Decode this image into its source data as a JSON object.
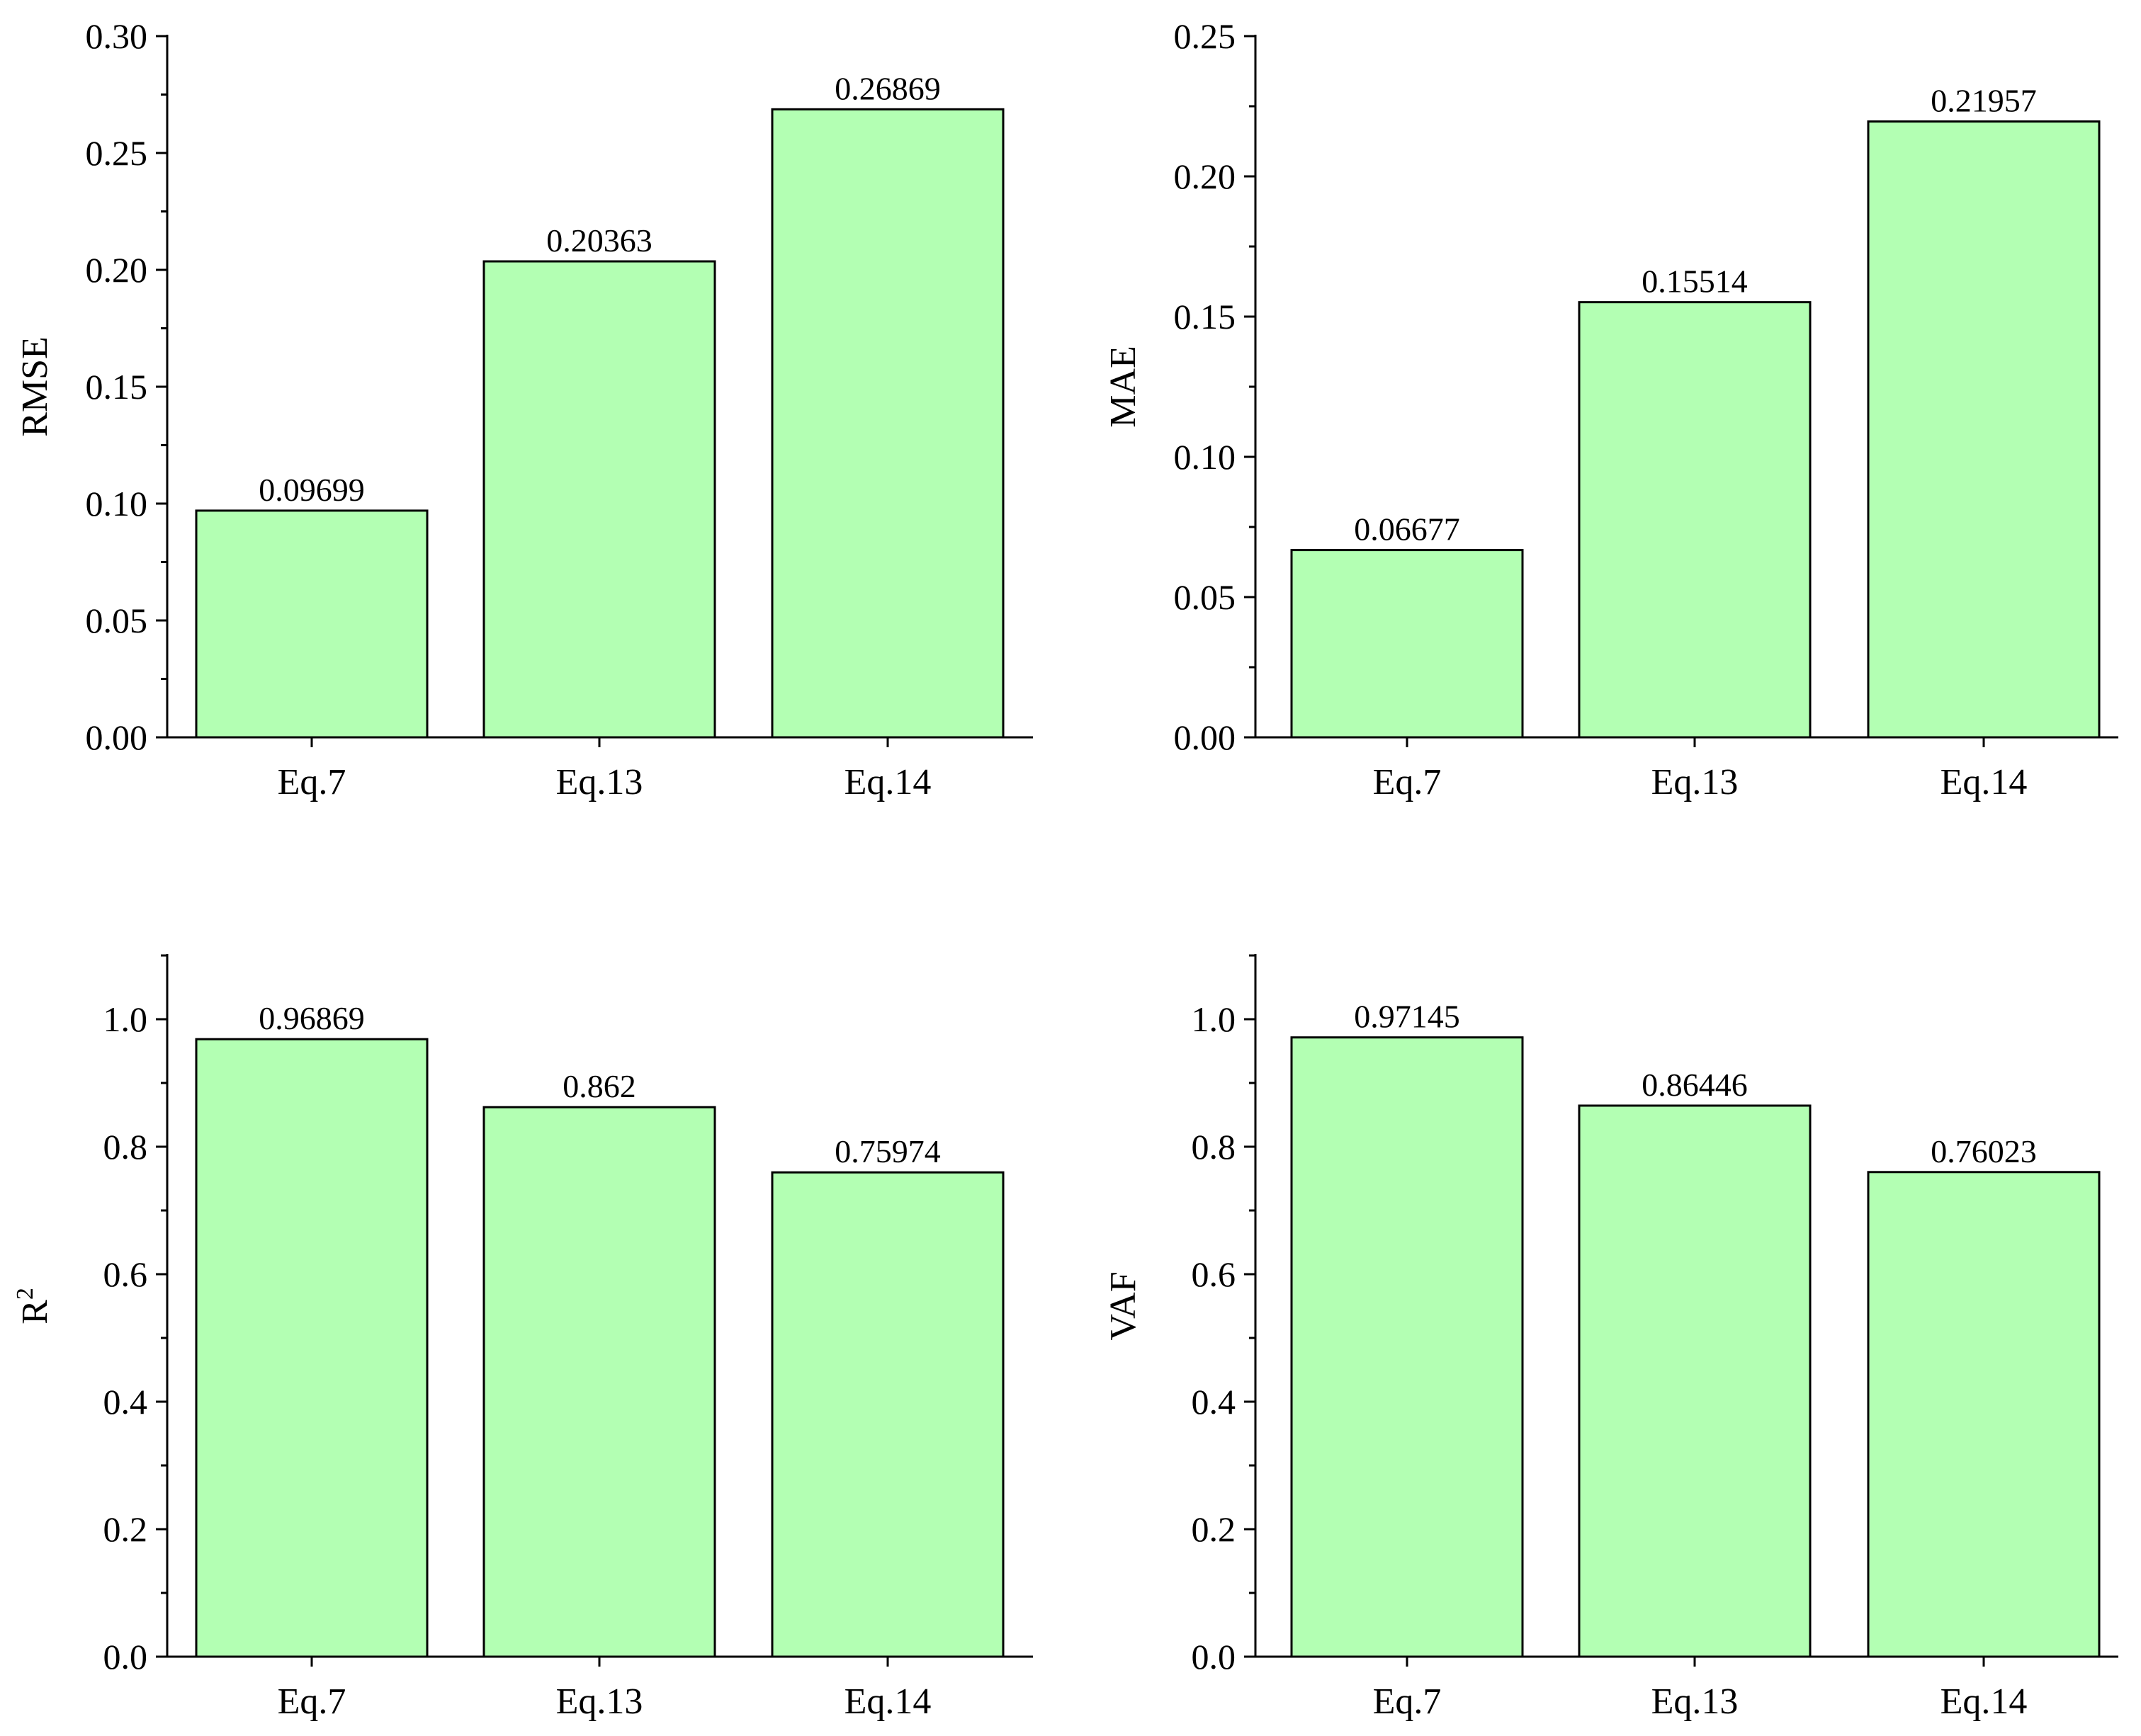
{
  "chart_data": [
    {
      "type": "bar",
      "categories": [
        "Eq.7",
        "Eq.13",
        "Eq.14"
      ],
      "values": [
        0.09699,
        0.20363,
        0.26869
      ],
      "value_labels": [
        "0.09699",
        "0.20363",
        "0.26869"
      ],
      "title": "",
      "xlabel": "",
      "ylabel": "RMSE",
      "ylim": [
        0,
        0.3
      ],
      "yticks": [
        0.0,
        0.05,
        0.1,
        0.15,
        0.2,
        0.25,
        0.3
      ],
      "ytick_labels": [
        "0.00",
        "0.05",
        "0.10",
        "0.15",
        "0.20",
        "0.25",
        "0.30"
      ],
      "minor_ticks": true,
      "grid": false,
      "bar_color": "#b3ffb3",
      "edge_color": "#000000"
    },
    {
      "type": "bar",
      "categories": [
        "Eq.7",
        "Eq.13",
        "Eq.14"
      ],
      "values": [
        0.06677,
        0.15514,
        0.21957
      ],
      "value_labels": [
        "0.06677",
        "0.15514",
        "0.21957"
      ],
      "title": "",
      "xlabel": "",
      "ylabel": "MAE",
      "ylim": [
        0,
        0.25
      ],
      "yticks": [
        0.0,
        0.05,
        0.1,
        0.15,
        0.2,
        0.25
      ],
      "ytick_labels": [
        "0.00",
        "0.05",
        "0.10",
        "0.15",
        "0.20",
        "0.25"
      ],
      "minor_ticks": true,
      "grid": false,
      "bar_color": "#b3ffb3",
      "edge_color": "#000000"
    },
    {
      "type": "bar",
      "categories": [
        "Eq.7",
        "Eq.13",
        "Eq.14"
      ],
      "values": [
        0.96869,
        0.862,
        0.75974
      ],
      "value_labels": [
        "0.96869",
        "0.862",
        "0.75974"
      ],
      "title": "",
      "xlabel": "",
      "ylabel": "R",
      "ylabel_superscript": "2",
      "ylim": [
        0,
        1.1
      ],
      "yticks": [
        0.0,
        0.2,
        0.4,
        0.6,
        0.8,
        1.0
      ],
      "ytick_labels": [
        "0.0",
        "0.2",
        "0.4",
        "0.6",
        "0.8",
        "1.0"
      ],
      "minor_ticks": true,
      "grid": false,
      "bar_color": "#b3ffb3",
      "edge_color": "#000000"
    },
    {
      "type": "bar",
      "categories": [
        "Eq.7",
        "Eq.13",
        "Eq.14"
      ],
      "values": [
        0.97145,
        0.86446,
        0.76023
      ],
      "value_labels": [
        "0.97145",
        "0.86446",
        "0.76023"
      ],
      "title": "",
      "xlabel": "",
      "ylabel": "VAF",
      "ylim": [
        0,
        1.1
      ],
      "yticks": [
        0.0,
        0.2,
        0.4,
        0.6,
        0.8,
        1.0
      ],
      "ytick_labels": [
        "0.0",
        "0.2",
        "0.4",
        "0.6",
        "0.8",
        "1.0"
      ],
      "minor_ticks": true,
      "grid": false,
      "bar_color": "#b3ffb3",
      "edge_color": "#000000"
    }
  ]
}
